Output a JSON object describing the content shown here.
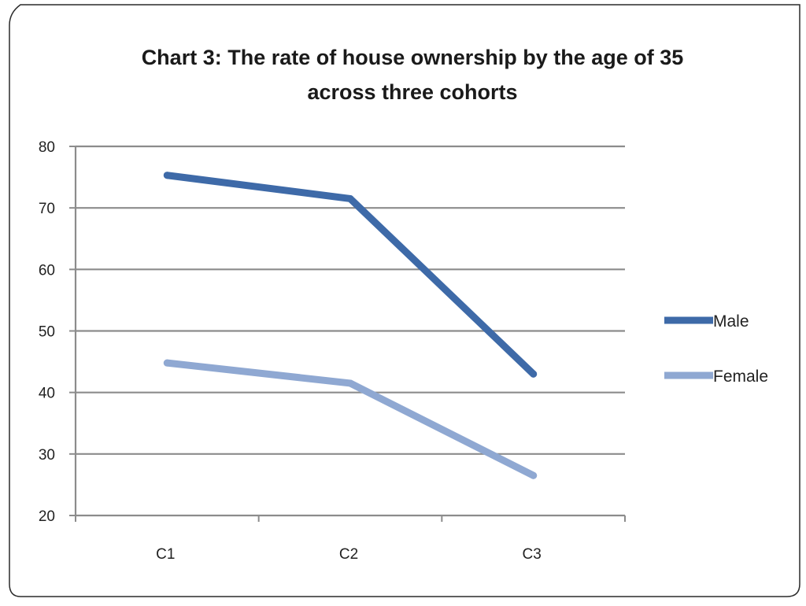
{
  "chart_data": {
    "type": "line",
    "title_lines": [
      "Chart 3: The rate of house ownership by the age of 35",
      "across three cohorts"
    ],
    "categories": [
      "C1",
      "C2",
      "C3"
    ],
    "series": [
      {
        "name": "Male",
        "values": [
          75.3,
          71.5,
          43.0
        ],
        "color": "#3e6aa8"
      },
      {
        "name": "Female",
        "values": [
          44.8,
          41.5,
          26.5
        ],
        "color": "#8fa8d2"
      }
    ],
    "y_ticks": [
      "80",
      "70",
      "60",
      "50",
      "40",
      "30",
      "20"
    ],
    "ylim": [
      20,
      80
    ],
    "xlabel": "",
    "ylabel": "",
    "grid": true,
    "legend_position": "right"
  }
}
